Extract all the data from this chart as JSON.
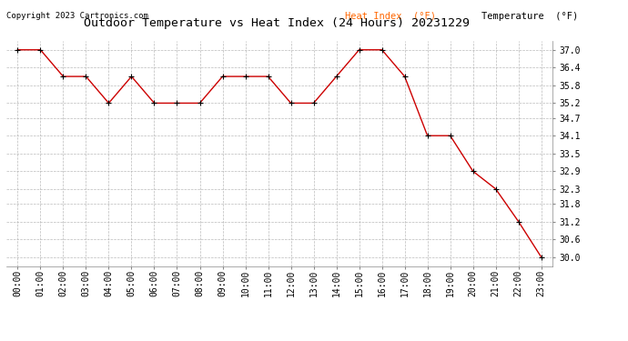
{
  "title": "Outdoor Temperature vs Heat Index (24 Hours) 20231229",
  "copyright_text": "Copyright 2023 Cartronics.com",
  "legend_heat_index": "Heat Index  (°F)",
  "legend_temperature": "Temperature  (°F)",
  "x_labels": [
    "00:00",
    "01:00",
    "02:00",
    "03:00",
    "04:00",
    "05:00",
    "06:00",
    "07:00",
    "08:00",
    "09:00",
    "10:00",
    "11:00",
    "12:00",
    "13:00",
    "14:00",
    "15:00",
    "16:00",
    "17:00",
    "18:00",
    "19:00",
    "20:00",
    "21:00",
    "22:00",
    "23:00"
  ],
  "heat_index": [
    37.0,
    37.0,
    36.1,
    36.1,
    35.2,
    36.1,
    35.2,
    35.2,
    35.2,
    36.1,
    36.1,
    36.1,
    35.2,
    35.2,
    36.1,
    37.0,
    37.0,
    36.1,
    34.1,
    34.1,
    32.9,
    32.3,
    31.2,
    30.0
  ],
  "temperature": [
    37.0,
    37.0,
    36.1,
    36.1,
    35.2,
    36.1,
    35.2,
    35.2,
    35.2,
    36.1,
    36.1,
    36.1,
    35.2,
    35.2,
    36.1,
    37.0,
    37.0,
    36.1,
    34.1,
    34.1,
    32.9,
    32.3,
    31.2,
    30.0
  ],
  "ylim_min": 29.7,
  "ylim_max": 37.3,
  "yticks": [
    30.0,
    30.6,
    31.2,
    31.8,
    32.3,
    32.9,
    33.5,
    34.1,
    34.7,
    35.2,
    35.8,
    36.4,
    37.0
  ],
  "line_color": "#cc0000",
  "marker_color": "#000000",
  "bg_color": "#ffffff",
  "grid_color": "#aaaaaa",
  "title_color": "#000000",
  "legend_hi_color": "#ff6600",
  "legend_temp_color": "#000000",
  "copyright_color": "#000000",
  "title_fontsize": 9.5,
  "tick_fontsize": 7,
  "legend_fontsize": 7.5,
  "copyright_fontsize": 6.5
}
